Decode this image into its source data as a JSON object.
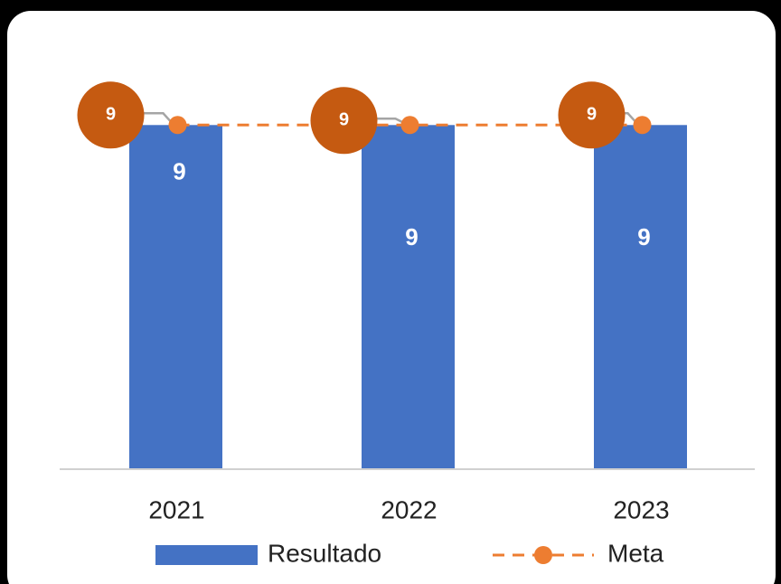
{
  "chart_data": {
    "type": "bar",
    "categories": [
      "2021",
      "2022",
      "2023"
    ],
    "ylim": [
      0,
      10
    ],
    "series": [
      {
        "name": "Resultado",
        "type": "bar",
        "color": "#4472c4",
        "values": [
          9,
          9,
          9
        ]
      },
      {
        "name": "Meta",
        "type": "line",
        "color": "#ed7d31",
        "label_color": "#c55a11",
        "dashed": true,
        "values": [
          9,
          9,
          9
        ]
      }
    ]
  }
}
